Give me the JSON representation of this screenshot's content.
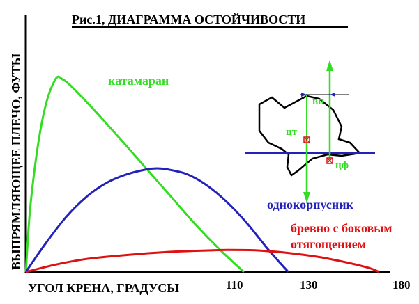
{
  "chart_data": {
    "type": "line",
    "title": "Рис.1, ДИАГРАММА ОСТОЙЧИВОСТИ",
    "xlabel": "УГОЛ КРЕНА, ГРАДУСЫ",
    "ylabel": "ВЫПРЯМЛЯЮЩЕЕ ПЛЕЧО, ФУТЫ",
    "x_ticks": [
      "110",
      "130",
      "180"
    ],
    "xlim": [
      0,
      185
    ],
    "ylim": [
      0,
      4.25
    ],
    "grid": false,
    "series": [
      {
        "name": "катамаран",
        "color": "#33dd22",
        "x": [
          0,
          2,
          5,
          8,
          11,
          14,
          16,
          18,
          20,
          24,
          30,
          38,
          48,
          60,
          72,
          84,
          96,
          108
        ],
        "y": [
          0,
          1.2,
          2.25,
          3.0,
          3.5,
          3.8,
          3.9,
          3.85,
          3.8,
          3.65,
          3.4,
          3.05,
          2.6,
          2.05,
          1.5,
          0.95,
          0.45,
          0
        ]
      },
      {
        "name": "однокорпусник",
        "color": "#2222bb",
        "x": [
          0,
          10,
          20,
          30,
          40,
          50,
          60,
          65,
          70,
          80,
          90,
          100,
          110,
          120,
          130
        ],
        "y": [
          0,
          0.58,
          1.1,
          1.5,
          1.78,
          1.95,
          2.05,
          2.07,
          2.05,
          1.95,
          1.72,
          1.38,
          0.95,
          0.45,
          0
        ]
      },
      {
        "name": "бревно с боковым отягощением",
        "color": "#dd1111",
        "x": [
          0,
          15,
          30,
          50,
          70,
          90,
          100,
          115,
          130,
          145,
          160,
          170,
          175
        ],
        "y": [
          0,
          0.15,
          0.26,
          0.34,
          0.4,
          0.43,
          0.44,
          0.43,
          0.38,
          0.3,
          0.18,
          0.08,
          0
        ]
      }
    ]
  },
  "inset": {
    "label_vp": "вп",
    "label_ct": "цт",
    "label_cf": "цф"
  }
}
